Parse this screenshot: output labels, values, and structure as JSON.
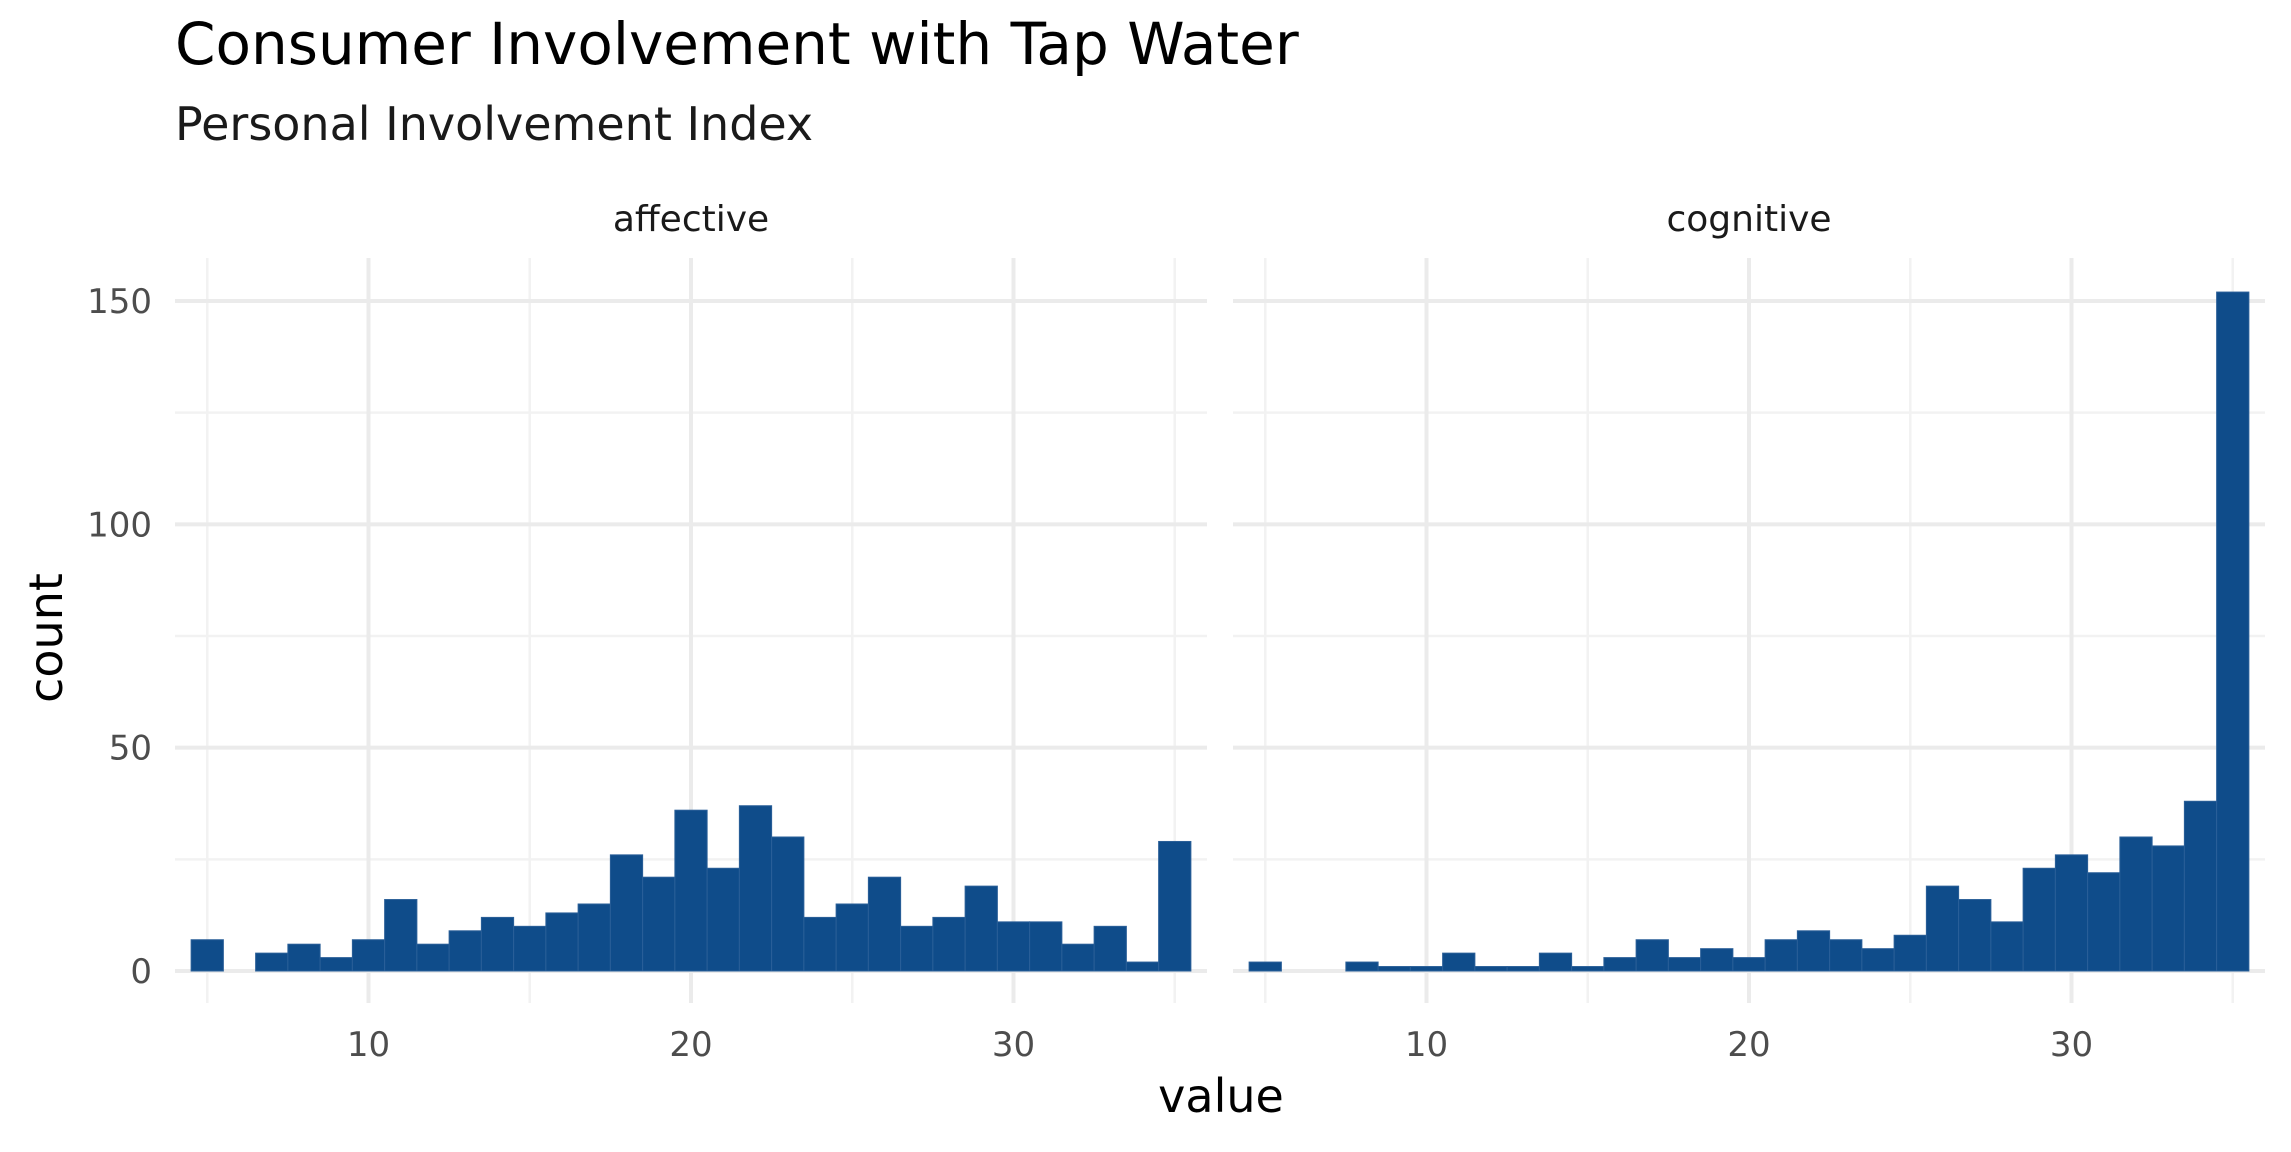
{
  "chart_data": {
    "type": "bar",
    "title": "Consumer Involvement with Tap Water",
    "subtitle": "Personal Involvement Index",
    "xlabel": "value",
    "ylabel": "count",
    "ylim": [
      0,
      152
    ],
    "xlim": [
      4,
      36
    ],
    "y_ticks": [
      0,
      50,
      100,
      150
    ],
    "x_ticks": [
      10,
      20,
      30
    ],
    "grid": true,
    "bar_color": "#0f4c8a",
    "bin_width": 1,
    "panels": [
      {
        "name": "affective",
        "x": [
          5,
          6,
          7,
          8,
          9,
          10,
          11,
          12,
          13,
          14,
          15,
          16,
          17,
          18,
          19,
          20,
          21,
          22,
          23,
          24,
          25,
          26,
          27,
          28,
          29,
          30,
          31,
          32,
          33,
          34,
          35
        ],
        "values": [
          7,
          0,
          4,
          6,
          3,
          7,
          16,
          6,
          9,
          12,
          10,
          13,
          15,
          26,
          21,
          36,
          23,
          37,
          30,
          12,
          15,
          21,
          10,
          12,
          19,
          11,
          11,
          6,
          10,
          2,
          29
        ]
      },
      {
        "name": "cognitive",
        "x": [
          5,
          6,
          7,
          8,
          9,
          10,
          11,
          12,
          13,
          14,
          15,
          16,
          17,
          18,
          19,
          20,
          21,
          22,
          23,
          24,
          25,
          26,
          27,
          28,
          29,
          30,
          31,
          32,
          33,
          34,
          35
        ],
        "values": [
          2,
          0,
          0,
          2,
          1,
          1,
          4,
          1,
          1,
          4,
          1,
          3,
          7,
          3,
          5,
          3,
          7,
          9,
          7,
          5,
          8,
          19,
          16,
          11,
          23,
          26,
          22,
          30,
          28,
          38,
          152
        ]
      }
    ]
  }
}
